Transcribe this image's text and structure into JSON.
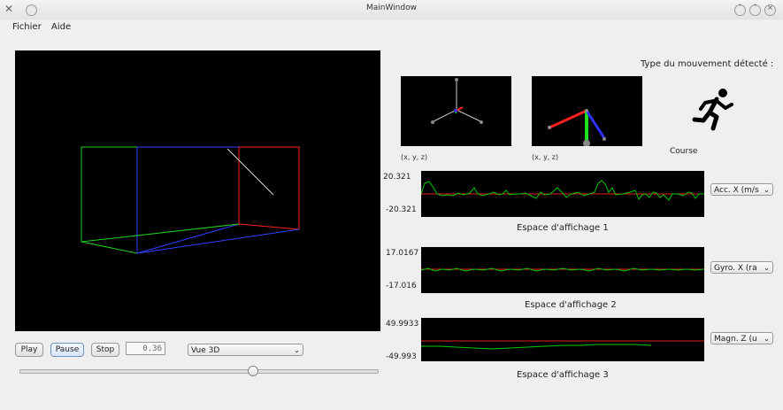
{
  "window": {
    "title": "MainWindow",
    "close_glyph": "✕"
  },
  "menu": {
    "items": [
      "Fichier",
      "Aide"
    ]
  },
  "controls": {
    "play_label": "Play",
    "pause_label": "Pause",
    "stop_label": "Stop",
    "time_value": "0.36",
    "view_selected": "Vue 3D",
    "slider_position": 0.65
  },
  "orientation": {
    "label_left": "(x, y, z)",
    "label_right": "(x, y, z)"
  },
  "movement": {
    "header": "Type du mouvement détecté :",
    "type": "Course",
    "icon": "running-person-icon"
  },
  "plots": [
    {
      "max": "20.321",
      "min": "-20.321",
      "caption": "Espace d'affichage 1",
      "sensor": "Acc. X (m/s"
    },
    {
      "max": "17.0167",
      "min": "-17.016",
      "caption": "Espace d'affichage 2",
      "sensor": "Gyro. X (ra"
    },
    {
      "max": "49.9933",
      "min": "-49.993",
      "caption": "Espace d'affichage 3",
      "sensor": "Magn. Z (u"
    }
  ],
  "colors": {
    "signal": "#00c800",
    "reference": "#e02020",
    "x_axis": "#ff2020",
    "y_axis": "#20e020",
    "z_axis": "#3030ff"
  }
}
